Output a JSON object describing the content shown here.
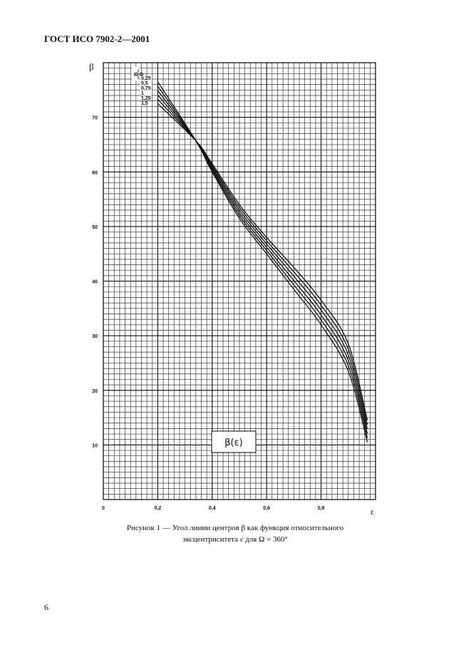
{
  "header": {
    "title": "ГОСТ ИСО 7902-2—2001"
  },
  "chart_data": {
    "type": "line",
    "y_label": "β",
    "x_label": "ε",
    "annotation": "β(ε)",
    "legend_title": {
      "numerator": "B",
      "denominator": "D"
    },
    "x": [
      0.2,
      0.34,
      0.4,
      0.5,
      0.6,
      0.7,
      0.8,
      0.9,
      0.97
    ],
    "series": [
      {
        "name": "0,25",
        "color": "#111111",
        "values": [
          76.5,
          65.7,
          60,
          51.5,
          45,
          38.5,
          32,
          23.5,
          10.5
        ]
      },
      {
        "name": "0,5",
        "color": "#111111",
        "values": [
          75.7,
          65.7,
          60.3,
          52,
          45.6,
          39.3,
          32.9,
          24.5,
          11.3
        ]
      },
      {
        "name": "0,75",
        "color": "#111111",
        "values": [
          74.9,
          65.7,
          60.6,
          52.5,
          46.2,
          40.1,
          33.8,
          25.5,
          12.1
        ]
      },
      {
        "name": "1",
        "color": "#111111",
        "values": [
          74.1,
          65.7,
          60.9,
          53,
          46.8,
          40.9,
          34.7,
          26.5,
          12.9
        ]
      },
      {
        "name": "1,25",
        "color": "#111111",
        "values": [
          73.3,
          65.7,
          61.2,
          53.5,
          47.4,
          41.7,
          35.6,
          27.5,
          13.7
        ]
      },
      {
        "name": "1,5",
        "color": "#111111",
        "values": [
          72.5,
          65.7,
          61.5,
          54,
          48,
          42.5,
          36.5,
          28.5,
          14.5
        ]
      }
    ],
    "xlim": [
      0,
      1
    ],
    "ylim": [
      0,
      80
    ],
    "xticks": [
      0,
      {
        "value": 0.2,
        "label": "0,2"
      },
      {
        "value": 0.4,
        "label": "0,4"
      },
      {
        "value": 0.6,
        "label": "0,6"
      },
      {
        "value": 0.8,
        "label": "0,8"
      }
    ],
    "yticks": [
      10,
      20,
      30,
      40,
      50,
      60,
      70
    ],
    "grid": true,
    "minor_grid": {
      "x": 0.02,
      "y": 1
    }
  },
  "caption": {
    "line1": "Рисунок 1 — Угол линии центров β как функция относительного",
    "line2": "эксцентриситета ε для Ω = 360°"
  },
  "page_number": "6"
}
